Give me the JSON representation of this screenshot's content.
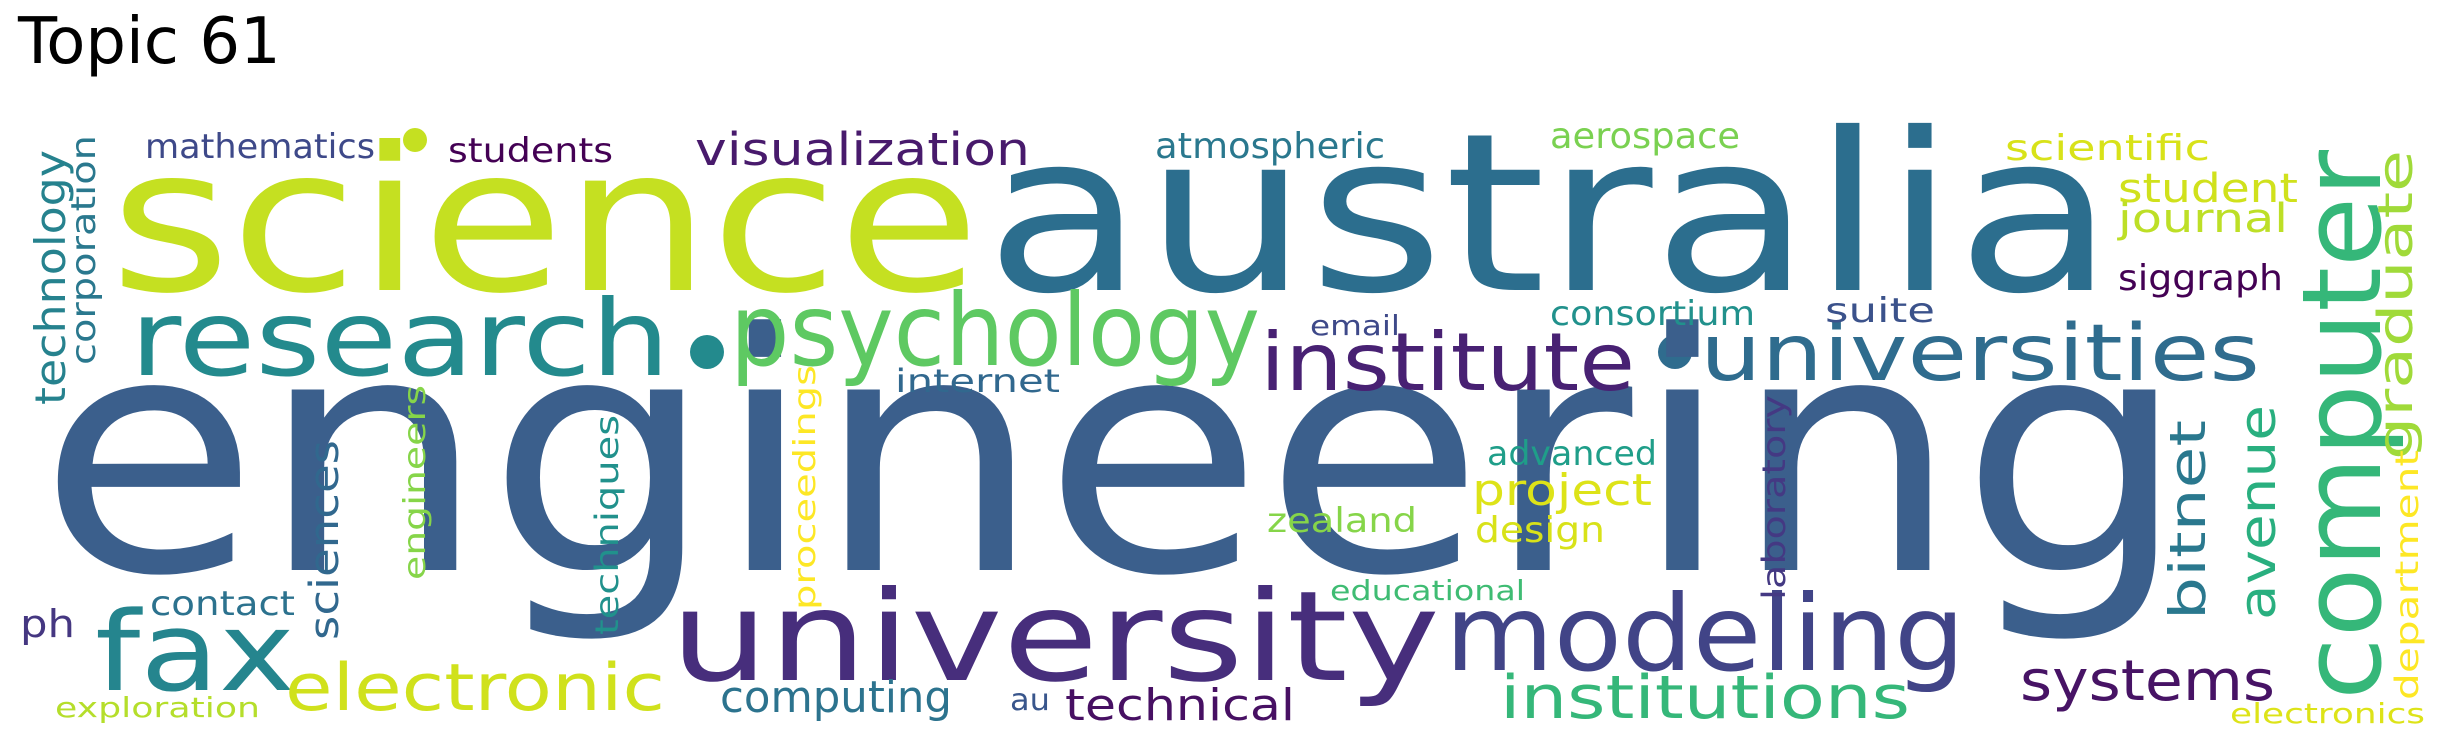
{
  "title": "Topic 61",
  "palette": "viridis",
  "words": [
    {
      "text": "engineering",
      "color": "#3b5f8c"
    },
    {
      "text": "australia",
      "color": "#2c6e8e"
    },
    {
      "text": "science",
      "color": "#c5e021"
    },
    {
      "text": "university",
      "color": "#472e7c"
    },
    {
      "text": "computer",
      "color": "#35b779"
    },
    {
      "text": "research",
      "color": "#238a8d"
    },
    {
      "text": "psychology",
      "color": "#5ec962"
    },
    {
      "text": "modeling",
      "color": "#414487"
    },
    {
      "text": "fax",
      "color": "#25858e"
    },
    {
      "text": "universities",
      "color": "#2f6c8e"
    },
    {
      "text": "institute",
      "color": "#482173"
    },
    {
      "text": "electronic",
      "color": "#d0e11c"
    },
    {
      "text": "institutions",
      "color": "#35b779"
    },
    {
      "text": "systems",
      "color": "#471365"
    },
    {
      "text": "visualization",
      "color": "#481a6c"
    },
    {
      "text": "bitnet",
      "color": "#2a788e"
    },
    {
      "text": "avenue",
      "color": "#29af7f"
    },
    {
      "text": "graduate",
      "color": "#a0da39"
    },
    {
      "text": "technology",
      "color": "#26828e"
    },
    {
      "text": "computing",
      "color": "#2c738e"
    },
    {
      "text": "technical",
      "color": "#471063"
    },
    {
      "text": "sciences",
      "color": "#31688e"
    },
    {
      "text": "project",
      "color": "#dde318"
    },
    {
      "text": "student",
      "color": "#d0e11c"
    },
    {
      "text": "journal",
      "color": "#bddf26"
    },
    {
      "text": "siggraph",
      "color": "#440154"
    },
    {
      "text": "atmospheric",
      "color": "#2a788e"
    },
    {
      "text": "aerospace",
      "color": "#7ad151"
    },
    {
      "text": "scientific",
      "color": "#d8e219"
    },
    {
      "text": "mathematics",
      "color": "#3e4989"
    },
    {
      "text": "students",
      "color": "#440154"
    },
    {
      "text": "corporation",
      "color": "#2a788e"
    },
    {
      "text": "consortium",
      "color": "#21918c"
    },
    {
      "text": "suite",
      "color": "#3b528b"
    },
    {
      "text": "email",
      "color": "#3e4989"
    },
    {
      "text": "internet",
      "color": "#31688e"
    },
    {
      "text": "advanced",
      "color": "#1f9e89"
    },
    {
      "text": "design",
      "color": "#d8e219"
    },
    {
      "text": "zealand",
      "color": "#86d549"
    },
    {
      "text": "laboratory",
      "color": "#443983"
    },
    {
      "text": "department",
      "color": "#fde725"
    },
    {
      "text": "engineers",
      "color": "#86d549"
    },
    {
      "text": "techniques",
      "color": "#21918c"
    },
    {
      "text": "proceedings",
      "color": "#fde725"
    },
    {
      "text": "contact",
      "color": "#2c728e"
    },
    {
      "text": "educational",
      "color": "#3fbc73"
    },
    {
      "text": "ph",
      "color": "#453781"
    },
    {
      "text": "au",
      "color": "#39568c"
    },
    {
      "text": "exploration",
      "color": "#b5de2b"
    },
    {
      "text": "electronics",
      "color": "#dde318"
    }
  ]
}
